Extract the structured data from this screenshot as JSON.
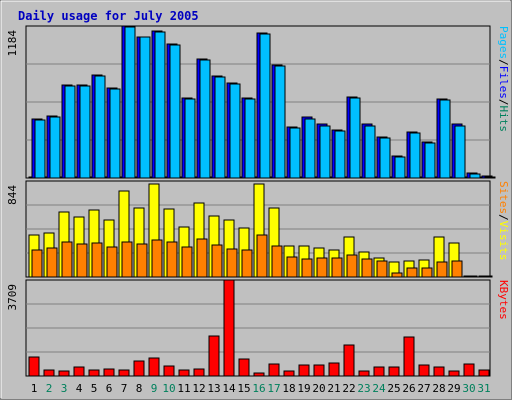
{
  "chart_data": [
    {
      "type": "bar",
      "title": "Daily usage for July 2005",
      "categories": [
        "1",
        "2",
        "3",
        "4",
        "5",
        "6",
        "7",
        "8",
        "9",
        "10",
        "11",
        "12",
        "13",
        "14",
        "15",
        "16",
        "17",
        "18",
        "19",
        "20",
        "21",
        "22",
        "23",
        "24",
        "25",
        "26",
        "27",
        "28",
        "29",
        "30",
        "31"
      ],
      "weekend_days": [
        "2",
        "3",
        "9",
        "10",
        "16",
        "17",
        "23",
        "24",
        "30",
        "31"
      ],
      "ymax": 1184,
      "ymax_label": "1184",
      "ylabel_parts": [
        "Pages",
        "/",
        "Files",
        "/",
        "Hits"
      ],
      "series": [
        {
          "name": "Hits",
          "color": "#00805c",
          "values": [
            5,
            5,
            5,
            5,
            5,
            5,
            5,
            5,
            5,
            5,
            5,
            5,
            5,
            5,
            5,
            5,
            5,
            5,
            5,
            5,
            5,
            5,
            5,
            5,
            5,
            5,
            5,
            5,
            5,
            5,
            5
          ]
        },
        {
          "name": "Files",
          "color": "#0000ff",
          "values": [
            458,
            480,
            722,
            722,
            800,
            704,
            1184,
            1100,
            1147,
            1043,
            624,
            926,
            797,
            741,
            624,
            1130,
            882,
            397,
            473,
            417,
            377,
            634,
            417,
            322,
            170,
            360,
            284,
            615,
            417,
            38,
            19
          ]
        },
        {
          "name": "Pages",
          "color": "#00c0ff",
          "values": [
            450,
            473,
            714,
            714,
            795,
            695,
            1175,
            1096,
            1138,
            1034,
            616,
            916,
            790,
            732,
            615,
            1121,
            872,
            388,
            463,
            407,
            369,
            626,
            407,
            312,
            161,
            350,
            275,
            607,
            407,
            29,
            10
          ]
        }
      ]
    },
    {
      "type": "bar",
      "categories": [
        "1",
        "2",
        "3",
        "4",
        "5",
        "6",
        "7",
        "8",
        "9",
        "10",
        "11",
        "12",
        "13",
        "14",
        "15",
        "16",
        "17",
        "18",
        "19",
        "20",
        "21",
        "22",
        "23",
        "24",
        "25",
        "26",
        "27",
        "28",
        "29",
        "30",
        "31"
      ],
      "ymax": 844,
      "ymax_label": "844",
      "ylabel_parts": [
        "Sites",
        "/",
        "Visits"
      ],
      "series": [
        {
          "name": "Visits",
          "color": "#ffff00",
          "values": [
            372,
            390,
            570,
            524,
            593,
            505,
            752,
            606,
            817,
            597,
            441,
            652,
            533,
            505,
            432,
            817,
            606,
            276,
            276,
            258,
            239,
            349,
            220,
            165,
            129,
            138,
            147,
            349,
            303,
            10,
            10
          ]
        },
        {
          "name": "Sites",
          "color": "#ff8000",
          "values": [
            239,
            257,
            312,
            294,
            303,
            266,
            312,
            294,
            321,
            312,
            266,
            331,
            285,
            248,
            239,
            367,
            276,
            175,
            156,
            165,
            165,
            193,
            156,
            138,
            37,
            83,
            83,
            129,
            138,
            5,
            5
          ]
        }
      ]
    },
    {
      "type": "bar",
      "categories": [
        "1",
        "2",
        "3",
        "4",
        "5",
        "6",
        "7",
        "8",
        "9",
        "10",
        "11",
        "12",
        "13",
        "14",
        "15",
        "16",
        "17",
        "18",
        "19",
        "20",
        "21",
        "22",
        "23",
        "24",
        "25",
        "26",
        "27",
        "28",
        "29",
        "30",
        "31"
      ],
      "ymax": 3709,
      "ymax_label": "3709",
      "ylabel_parts": [
        "KBytes"
      ],
      "series": [
        {
          "name": "KBytes",
          "color": "#ff0000",
          "values": [
            748,
            241,
            178,
            354,
            242,
            267,
            241,
            576,
            686,
            368,
            242,
            272,
            1549,
            3709,
            643,
            105,
            446,
            178,
            420,
            441,
            513,
            1181,
            178,
            354,
            354,
            1512,
            441,
            354,
            178,
            467,
            240
          ]
        }
      ]
    }
  ]
}
